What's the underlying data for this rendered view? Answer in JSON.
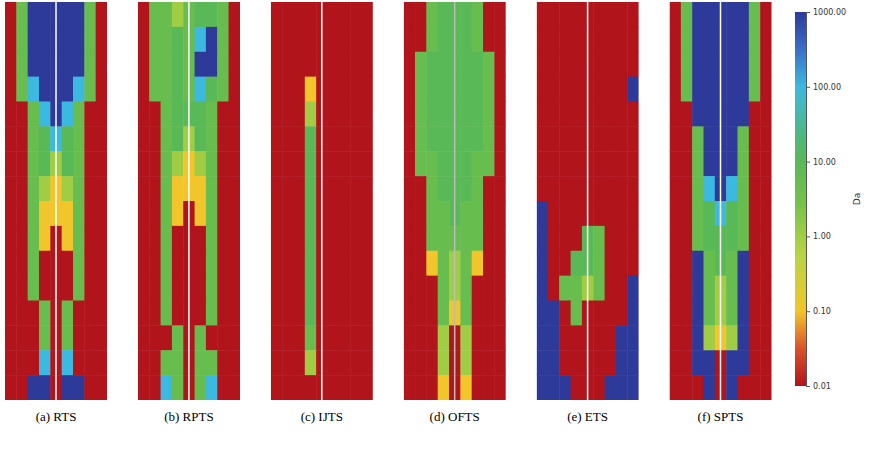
{
  "chart_data": {
    "type": "heatmap",
    "log": true,
    "panels": [
      {
        "title": "(a) RTS",
        "cells": [
          [
            0.01,
            5,
            1000,
            1000,
            1000,
            1000,
            1000,
            5,
            0.01
          ],
          [
            0.01,
            5,
            1000,
            1000,
            1000,
            1000,
            1000,
            5,
            0.01
          ],
          [
            0.01,
            5,
            1000,
            1000,
            1000,
            1000,
            1000,
            5,
            0.01
          ],
          [
            0.01,
            5,
            100,
            1000,
            1000,
            1000,
            100,
            5,
            0.01
          ],
          [
            0.01,
            0.01,
            5,
            100,
            1000,
            100,
            5,
            0.01,
            0.01
          ],
          [
            0.01,
            0.01,
            5,
            10,
            100,
            10,
            5,
            0.01,
            0.01
          ],
          [
            0.01,
            0.01,
            5,
            10,
            1,
            10,
            5,
            0.01,
            0.01
          ],
          [
            0.01,
            0.01,
            5,
            1,
            0.1,
            1,
            5,
            0.01,
            0.01
          ],
          [
            0.01,
            0.01,
            5,
            0.1,
            0.1,
            0.1,
            5,
            0.01,
            0.01
          ],
          [
            0.01,
            0.01,
            5,
            0.1,
            0.01,
            0.1,
            5,
            0.01,
            0.01
          ],
          [
            0.01,
            0.01,
            5,
            0.01,
            0.01,
            0.01,
            5,
            0.01,
            0.01
          ],
          [
            0.01,
            0.01,
            5,
            0.01,
            0.01,
            0.01,
            5,
            0.01,
            0.01
          ],
          [
            0.01,
            0.01,
            0.01,
            5,
            0.01,
            5,
            0.01,
            0.01,
            0.01
          ],
          [
            0.01,
            0.01,
            0.01,
            5,
            0.01,
            5,
            0.01,
            0.01,
            0.01
          ],
          [
            0.01,
            0.01,
            0.01,
            100,
            0.01,
            100,
            0.01,
            0.01,
            0.01
          ],
          [
            0.01,
            0.01,
            1000,
            1000,
            0.01,
            1000,
            1000,
            0.01,
            0.01
          ]
        ]
      },
      {
        "title": "(b) RPTS",
        "cells": [
          [
            0.01,
            5,
            5,
            1,
            5,
            10,
            10,
            5,
            0.01
          ],
          [
            0.01,
            5,
            5,
            10,
            5,
            100,
            1000,
            5,
            0.01
          ],
          [
            0.01,
            5,
            5,
            10,
            5,
            1000,
            1000,
            5,
            0.01
          ],
          [
            0.01,
            5,
            5,
            10,
            5,
            100,
            10,
            5,
            0.01
          ],
          [
            0.01,
            0.01,
            5,
            10,
            10,
            10,
            5,
            0.01,
            0.01
          ],
          [
            0.01,
            0.01,
            5,
            10,
            1,
            10,
            5,
            0.01,
            0.01
          ],
          [
            0.01,
            0.01,
            5,
            1,
            0.1,
            1,
            5,
            0.01,
            0.01
          ],
          [
            0.01,
            0.01,
            5,
            0.1,
            0.1,
            0.1,
            5,
            0.01,
            0.01
          ],
          [
            0.01,
            0.01,
            5,
            0.1,
            0.01,
            0.1,
            5,
            0.01,
            0.01
          ],
          [
            0.01,
            0.01,
            5,
            0.01,
            0.01,
            0.01,
            5,
            0.01,
            0.01
          ],
          [
            0.01,
            0.01,
            5,
            0.01,
            0.01,
            0.01,
            5,
            0.01,
            0.01
          ],
          [
            0.01,
            0.01,
            5,
            0.01,
            0.01,
            0.01,
            5,
            0.01,
            0.01
          ],
          [
            0.01,
            0.01,
            5,
            0.01,
            0.01,
            0.01,
            5,
            0.01,
            0.01
          ],
          [
            0.01,
            0.01,
            0.01,
            5,
            0.01,
            5,
            0.01,
            0.01,
            0.01
          ],
          [
            0.01,
            0.01,
            5,
            5,
            0.01,
            5,
            5,
            0.01,
            0.01
          ],
          [
            0.01,
            0.01,
            100,
            5,
            0.01,
            5,
            100,
            0.01,
            0.01
          ]
        ]
      },
      {
        "title": "(c) IJTS",
        "cells": [
          [
            0.01,
            0.01,
            0.01,
            0.01,
            0.01,
            0.01,
            0.01,
            0.01,
            0.01
          ],
          [
            0.01,
            0.01,
            0.01,
            0.01,
            0.01,
            0.01,
            0.01,
            0.01,
            0.01
          ],
          [
            0.01,
            0.01,
            0.01,
            0.01,
            0.01,
            0.01,
            0.01,
            0.01,
            0.01
          ],
          [
            0.01,
            0.01,
            0.01,
            0.1,
            0.01,
            0.01,
            0.01,
            0.01,
            0.01
          ],
          [
            0.01,
            0.01,
            0.01,
            1,
            0.01,
            0.01,
            0.01,
            0.01,
            0.01
          ],
          [
            0.01,
            0.01,
            0.01,
            10,
            0.01,
            0.01,
            0.01,
            0.01,
            0.01
          ],
          [
            0.01,
            0.01,
            0.01,
            10,
            0.01,
            0.01,
            0.01,
            0.01,
            0.01
          ],
          [
            0.01,
            0.01,
            0.01,
            10,
            0.01,
            0.01,
            0.01,
            0.01,
            0.01
          ],
          [
            0.01,
            0.01,
            0.01,
            10,
            0.01,
            0.01,
            0.01,
            0.01,
            0.01
          ],
          [
            0.01,
            0.01,
            0.01,
            10,
            0.01,
            0.01,
            0.01,
            0.01,
            0.01
          ],
          [
            0.01,
            0.01,
            0.01,
            10,
            0.01,
            0.01,
            0.01,
            0.01,
            0.01
          ],
          [
            0.01,
            0.01,
            0.01,
            10,
            0.01,
            0.01,
            0.01,
            0.01,
            0.01
          ],
          [
            0.01,
            0.01,
            0.01,
            10,
            0.01,
            0.01,
            0.01,
            0.01,
            0.01
          ],
          [
            0.01,
            0.01,
            0.01,
            5,
            0.01,
            0.01,
            0.01,
            0.01,
            0.01
          ],
          [
            0.01,
            0.01,
            0.01,
            1,
            0.01,
            0.01,
            0.01,
            0.01,
            0.01
          ],
          [
            0.01,
            0.01,
            0.01,
            0.01,
            0.01,
            0.01,
            0.01,
            0.01,
            0.01
          ]
        ]
      },
      {
        "title": "(d) OFTS",
        "cells": [
          [
            0.01,
            0.01,
            5,
            10,
            10,
            10,
            5,
            0.01,
            0.01
          ],
          [
            0.01,
            0.01,
            5,
            10,
            10,
            10,
            5,
            0.01,
            0.01
          ],
          [
            0.01,
            5,
            10,
            10,
            10,
            10,
            10,
            5,
            0.01
          ],
          [
            0.01,
            5,
            10,
            10,
            10,
            10,
            10,
            5,
            0.01
          ],
          [
            0.01,
            5,
            10,
            10,
            10,
            10,
            10,
            5,
            0.01
          ],
          [
            0.01,
            5,
            10,
            10,
            10,
            10,
            10,
            5,
            0.01
          ],
          [
            0.01,
            5,
            5,
            10,
            10,
            10,
            5,
            5,
            0.01
          ],
          [
            0.01,
            0.01,
            5,
            10,
            10,
            10,
            5,
            0.01,
            0.01
          ],
          [
            0.01,
            0.01,
            5,
            5,
            10,
            5,
            5,
            0.01,
            0.01
          ],
          [
            0.01,
            0.01,
            5,
            5,
            5,
            5,
            5,
            0.01,
            0.01
          ],
          [
            0.01,
            0.01,
            0.1,
            5,
            1,
            5,
            0.1,
            0.01,
            0.01
          ],
          [
            0.01,
            0.01,
            0.01,
            5,
            1,
            5,
            0.01,
            0.01,
            0.01
          ],
          [
            0.01,
            0.01,
            0.01,
            5,
            0.1,
            5,
            0.01,
            0.01,
            0.01
          ],
          [
            0.01,
            0.01,
            0.01,
            1,
            0.01,
            1,
            0.01,
            0.01,
            0.01
          ],
          [
            0.01,
            0.01,
            0.01,
            1,
            0.01,
            1,
            0.01,
            0.01,
            0.01
          ],
          [
            0.01,
            0.01,
            0.01,
            0.1,
            0.01,
            0.1,
            0.01,
            0.01,
            0.01
          ]
        ]
      },
      {
        "title": "(e) ETS",
        "cells": [
          [
            0.01,
            0.01,
            0.01,
            0.01,
            0.01,
            0.01,
            0.01,
            0.01,
            0.01
          ],
          [
            0.01,
            0.01,
            0.01,
            0.01,
            0.01,
            0.01,
            0.01,
            0.01,
            0.01
          ],
          [
            0.01,
            0.01,
            0.01,
            0.01,
            0.01,
            0.01,
            0.01,
            0.01,
            0.01
          ],
          [
            0.01,
            0.01,
            0.01,
            0.01,
            0.01,
            0.01,
            0.01,
            0.01,
            1000
          ],
          [
            0.01,
            0.01,
            0.01,
            0.01,
            0.01,
            0.01,
            0.01,
            0.01,
            0.01
          ],
          [
            0.01,
            0.01,
            0.01,
            0.01,
            0.01,
            0.01,
            0.01,
            0.01,
            0.01
          ],
          [
            0.01,
            0.01,
            0.01,
            0.01,
            0.01,
            0.01,
            0.01,
            0.01,
            0.01
          ],
          [
            0.01,
            0.01,
            0.01,
            0.01,
            0.01,
            0.01,
            0.01,
            0.01,
            0.01
          ],
          [
            1000,
            0.01,
            0.01,
            0.01,
            0.01,
            0.01,
            0.01,
            0.01,
            0.01
          ],
          [
            1000,
            0.01,
            0.01,
            0.01,
            10,
            5,
            0.01,
            0.01,
            0.01
          ],
          [
            1000,
            0.01,
            0.01,
            10,
            10,
            5,
            0.01,
            0.01,
            0.01
          ],
          [
            1000,
            0.01,
            5,
            5,
            1,
            5,
            0.01,
            0.01,
            1000
          ],
          [
            1000,
            1000,
            0.01,
            5,
            0.01,
            0.01,
            0.01,
            0.01,
            1000
          ],
          [
            1000,
            1000,
            0.01,
            0.01,
            0.01,
            0.01,
            0.01,
            1000,
            1000
          ],
          [
            1000,
            1000,
            0.01,
            0.01,
            0.01,
            0.01,
            0.01,
            1000,
            1000
          ],
          [
            1000,
            1000,
            1000,
            0.01,
            0.01,
            0.01,
            1000,
            1000,
            1000
          ]
        ]
      },
      {
        "title": "(f) SPTS",
        "cells": [
          [
            0.01,
            5,
            1000,
            1000,
            1000,
            1000,
            1000,
            5,
            0.01
          ],
          [
            0.01,
            5,
            1000,
            1000,
            1000,
            1000,
            1000,
            5,
            0.01
          ],
          [
            0.01,
            5,
            1000,
            1000,
            1000,
            1000,
            1000,
            5,
            0.01
          ],
          [
            0.01,
            5,
            1000,
            1000,
            1000,
            1000,
            1000,
            5,
            0.01
          ],
          [
            0.01,
            0.01,
            1000,
            1000,
            1000,
            1000,
            1000,
            0.01,
            0.01
          ],
          [
            0.01,
            0.01,
            5,
            1000,
            1000,
            1000,
            5,
            0.01,
            0.01
          ],
          [
            0.01,
            0.01,
            5,
            1000,
            1000,
            1000,
            5,
            0.01,
            0.01
          ],
          [
            0.01,
            0.01,
            5,
            100,
            1000,
            100,
            5,
            0.01,
            0.01
          ],
          [
            0.01,
            0.01,
            5,
            10,
            100,
            10,
            5,
            0.01,
            0.01
          ],
          [
            0.01,
            0.01,
            5,
            10,
            10,
            10,
            5,
            0.01,
            0.01
          ],
          [
            0.01,
            0.01,
            1000,
            5,
            10,
            5,
            1000,
            0.01,
            0.01
          ],
          [
            0.01,
            0.01,
            1000,
            5,
            1,
            5,
            1000,
            0.01,
            0.01
          ],
          [
            0.01,
            0.01,
            1000,
            5,
            1,
            5,
            1000,
            0.01,
            0.01
          ],
          [
            0.01,
            0.01,
            1000,
            1,
            0.1,
            1,
            1000,
            0.01,
            0.01
          ],
          [
            0.01,
            0.01,
            1000,
            1000,
            0.01,
            1000,
            1000,
            0.01,
            0.01
          ],
          [
            0.01,
            0.01,
            0.01,
            1000,
            0.01,
            1000,
            0.01,
            0.01,
            0.01
          ]
        ]
      }
    ],
    "colorbar": {
      "label": "Da",
      "range": [
        0.01,
        1000
      ],
      "ticks": [
        0.01,
        {
          "value": 0.1,
          "label": "0.10"
        },
        {
          "value": 1,
          "label": "1.00"
        },
        {
          "value": 10,
          "label": "10.00"
        },
        {
          "value": 100,
          "label": "100.00"
        },
        {
          "value": 1000,
          "label": "1000.00"
        }
      ]
    }
  }
}
